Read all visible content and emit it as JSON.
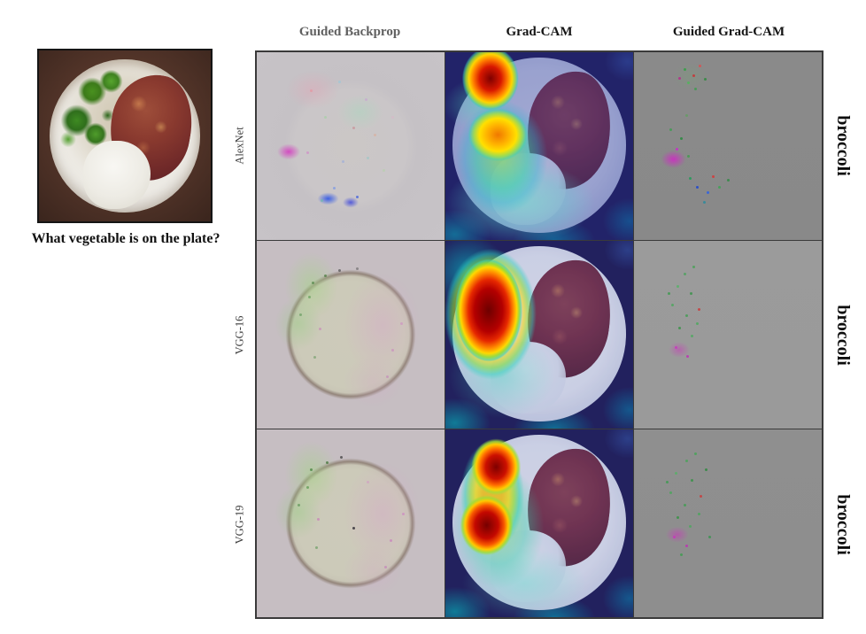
{
  "figure": {
    "caption": "What vegetable is on the plate?",
    "columns": [
      {
        "label": "Guided Backprop"
      },
      {
        "label": "Grad-CAM"
      },
      {
        "label": "Guided Grad-CAM"
      }
    ],
    "rows": [
      {
        "model": "AlexNet",
        "answer": "broccoli"
      },
      {
        "model": "VGG-16",
        "answer": "broccoli"
      },
      {
        "model": "VGG-19",
        "answer": "broccoli"
      }
    ],
    "colors": {
      "heatmap_core_red": "#7e0000",
      "heatmap_hot": "#e62800",
      "heatmap_yellow": "#ffd400",
      "heatmap_green": "#9fdc3c",
      "heatmap_cyan": "#3cd2b4",
      "gradcam_background_navy": "#221f56",
      "guided_backprop_bg": "#c7c3c7",
      "guided_gradcam_bg_row1": "#8a8a8a",
      "guided_gradcam_bg_row2": "#9b9b9b",
      "guided_gradcam_bg_row3": "#8f8f8f",
      "photo_background_brown": "#57372b",
      "broccoli_green": "#3e8a22",
      "meat_red": "#8a3a2f"
    }
  }
}
